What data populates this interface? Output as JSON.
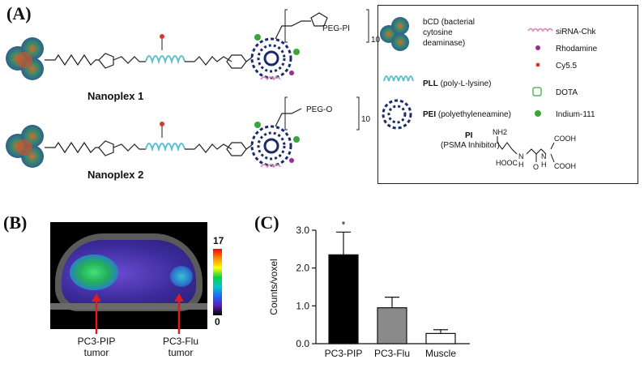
{
  "panel_a": {
    "label": "(A)",
    "nanoplex1": "Nanoplex 1",
    "nanoplex2": "Nanoplex 2",
    "peg_pi": "PEG-PI",
    "peg_o": "PEG-O",
    "subscript10": "10",
    "legend": {
      "bcd": [
        "bCD (bacterial",
        "cytosine",
        "deaminase)"
      ],
      "sirna": "siRNA-Chk",
      "rhodamine": "Rhodamine",
      "cy55": "Cy5.5",
      "pll_bold": "PLL",
      "pll_rest": " (poly-L-lysine)",
      "dota": "DOTA",
      "pei_bold": "PEI",
      "pei_rest": " (polyethyleneamine)",
      "indium": "Indium-111",
      "pi_bold": "PI",
      "pi_rest": "(PSMA Inhibitor)",
      "chem_nh2": "NH2",
      "chem_cooh1": "COOH",
      "chem_hooc": "HOOC",
      "chem_n1": "N",
      "chem_n2": "N",
      "chem_h1": "H",
      "chem_h2": "H",
      "chem_cooh2": "COOH",
      "chem_o": "O"
    },
    "colors": {
      "bcd": "#2f5f9e",
      "pll": "#5ec0cf",
      "pei": "#1a2a6c",
      "sirna": "#e07bb3",
      "rhodamine": "#9a2d8f",
      "cy55": "#d43a2f",
      "indium": "#3aa63a"
    }
  },
  "panel_b": {
    "label": "(B)",
    "scale_max": "17",
    "scale_min": "0",
    "arrow1_label": [
      "PC3-PIP",
      "tumor"
    ],
    "arrow2_label": [
      "PC3-Flu",
      "tumor"
    ]
  },
  "panel_c": {
    "label": "(C)",
    "significance": "*"
  },
  "chart_data": {
    "type": "bar",
    "categories": [
      "PC3-PIP",
      "PC3-Flu",
      "Muscle"
    ],
    "values": [
      2.35,
      0.95,
      0.27
    ],
    "errors": [
      0.6,
      0.28,
      0.1
    ],
    "bar_colors": [
      "#000000",
      "#8a8a8a",
      "#ffffff"
    ],
    "ylabel": "Counts/voxel",
    "ylim": [
      0,
      3.0
    ],
    "yticks": [
      "0.0",
      "1.0",
      "2.0",
      "3.0"
    ],
    "grid": false
  }
}
